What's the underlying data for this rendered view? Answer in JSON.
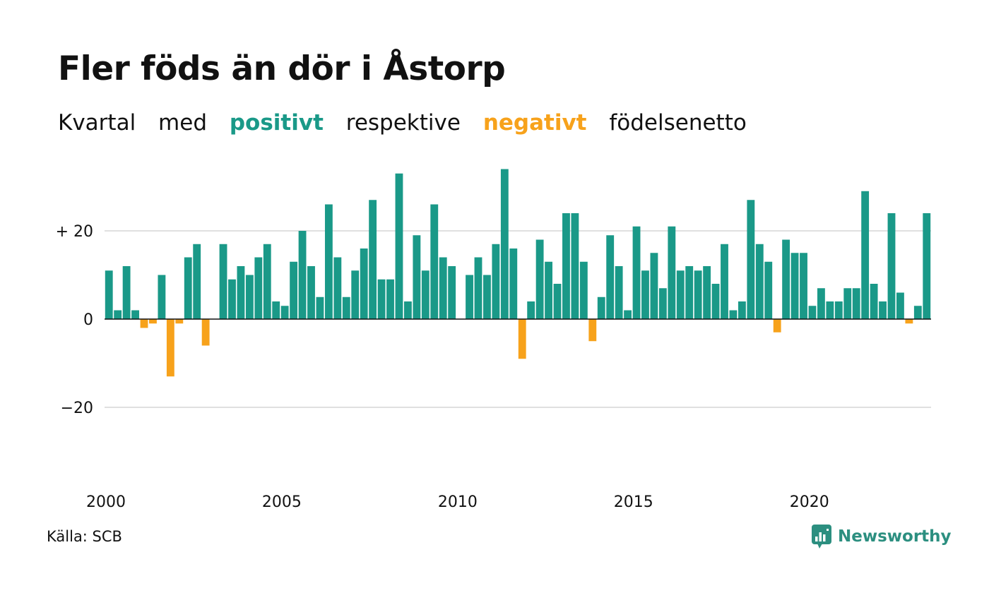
{
  "title": "Fler föds än dör i Åstorp",
  "subtitle": {
    "part1": "Kvartal",
    "part2": "med",
    "positive_word": "positivt",
    "part3": "respektive",
    "negative_word": "negativt",
    "part4": "födelsenetto"
  },
  "colors": {
    "positive": "#1a9988",
    "negative": "#f7a21b",
    "grid": "#e0e0e0",
    "baseline": "#111111",
    "brand": "#2c8f80"
  },
  "source": "Källa: SCB",
  "brand": {
    "name": "Newsworthy",
    "icon": "chart-bubble-icon"
  },
  "chart_data": {
    "type": "bar",
    "title": "Fler föds än dör i Åstorp",
    "subtitle": "Kvartal med positivt respektive negativt födelsenetto",
    "x_start": 2000,
    "x_end": 2023.75,
    "ylim": [
      -40,
      36
    ],
    "y_ticks": [
      {
        "value": 20,
        "label": "+ 20"
      },
      {
        "value": 0,
        "label": "0"
      },
      {
        "value": -20,
        "label": "−20"
      }
    ],
    "x_ticks": [
      {
        "value": 2000,
        "label": "2000"
      },
      {
        "value": 2005,
        "label": "2005"
      },
      {
        "value": 2010,
        "label": "2010"
      },
      {
        "value": 2015,
        "label": "2015"
      },
      {
        "value": 2020,
        "label": "2020"
      }
    ],
    "grid": true,
    "series": [
      {
        "values": [
          11,
          2,
          12,
          2,
          -2,
          -1,
          10,
          -13,
          -1,
          14,
          17,
          -6,
          0,
          17,
          9,
          12,
          10,
          14,
          17,
          4,
          3,
          13,
          20,
          12,
          5,
          26,
          14,
          5,
          11,
          16,
          27,
          9,
          9,
          33,
          4,
          19,
          11,
          26,
          14,
          12,
          0,
          10,
          14,
          10,
          17,
          34,
          16,
          -9,
          4,
          18,
          13,
          8,
          24,
          24,
          13,
          -5,
          5,
          19,
          12,
          2,
          21,
          11,
          15,
          7,
          21,
          11,
          12,
          11,
          12,
          8,
          17,
          2,
          4,
          27,
          17,
          13,
          -3,
          18,
          15,
          15,
          3,
          7,
          4,
          4,
          7,
          7,
          29,
          8,
          4,
          24,
          6,
          -1,
          3,
          24
        ]
      }
    ]
  }
}
